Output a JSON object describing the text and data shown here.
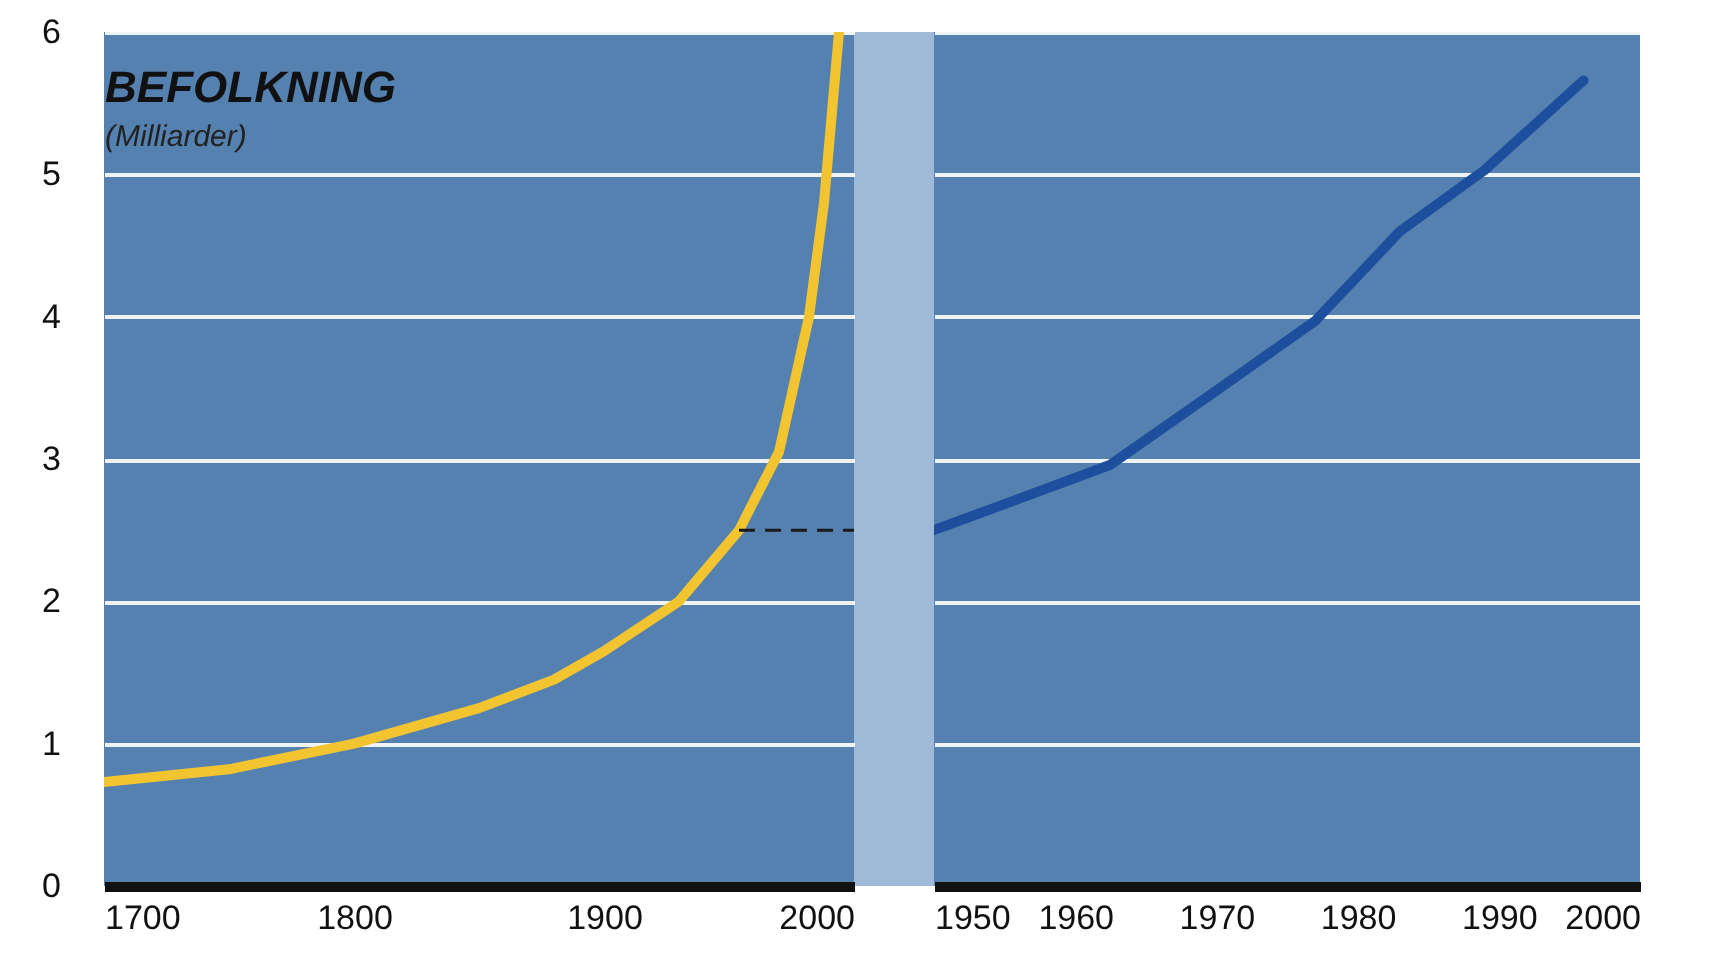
{
  "chart_data": [
    {
      "type": "line",
      "title": "BEFOLKNING",
      "subtitle": "(Milliarder)",
      "xlim": [
        1700,
        2000
      ],
      "xticks": [
        1700,
        1800,
        1900,
        2000
      ],
      "ylim": [
        0,
        6
      ],
      "yticks": [
        0,
        1,
        2,
        3,
        4,
        5,
        6
      ],
      "grid": "y",
      "series": [
        {
          "color": "#f2c530",
          "x": [
            1700,
            1750,
            1800,
            1850,
            1880,
            1900,
            1930,
            1954,
            1970,
            1982,
            1988,
            1994
          ],
          "values": [
            0.73,
            0.82,
            1.0,
            1.25,
            1.45,
            1.65,
            2.0,
            2.5,
            3.05,
            4.0,
            4.8,
            6.0
          ]
        },
        {
          "color": "#1a1a1a",
          "line_style": "dashed",
          "x": [
            1954,
            2000
          ],
          "values": [
            2.5,
            2.5
          ]
        }
      ]
    },
    {
      "type": "line",
      "xlim": [
        1950,
        2000
      ],
      "xticks": [
        1950,
        1960,
        1970,
        1980,
        1990,
        2000
      ],
      "ylim": [
        0,
        6
      ],
      "yticks": [
        0,
        1,
        2,
        3,
        4,
        5,
        6
      ],
      "grid": "y",
      "tick_labels": "x",
      "series": [
        {
          "color": "#1d4f9e",
          "x": [
            1950,
            1956,
            1962.5,
            1970,
            1977,
            1983,
            1989,
            1996
          ],
          "values": [
            2.5,
            2.72,
            2.96,
            3.48,
            3.97,
            4.6,
            5.03,
            5.66
          ]
        }
      ]
    }
  ]
}
